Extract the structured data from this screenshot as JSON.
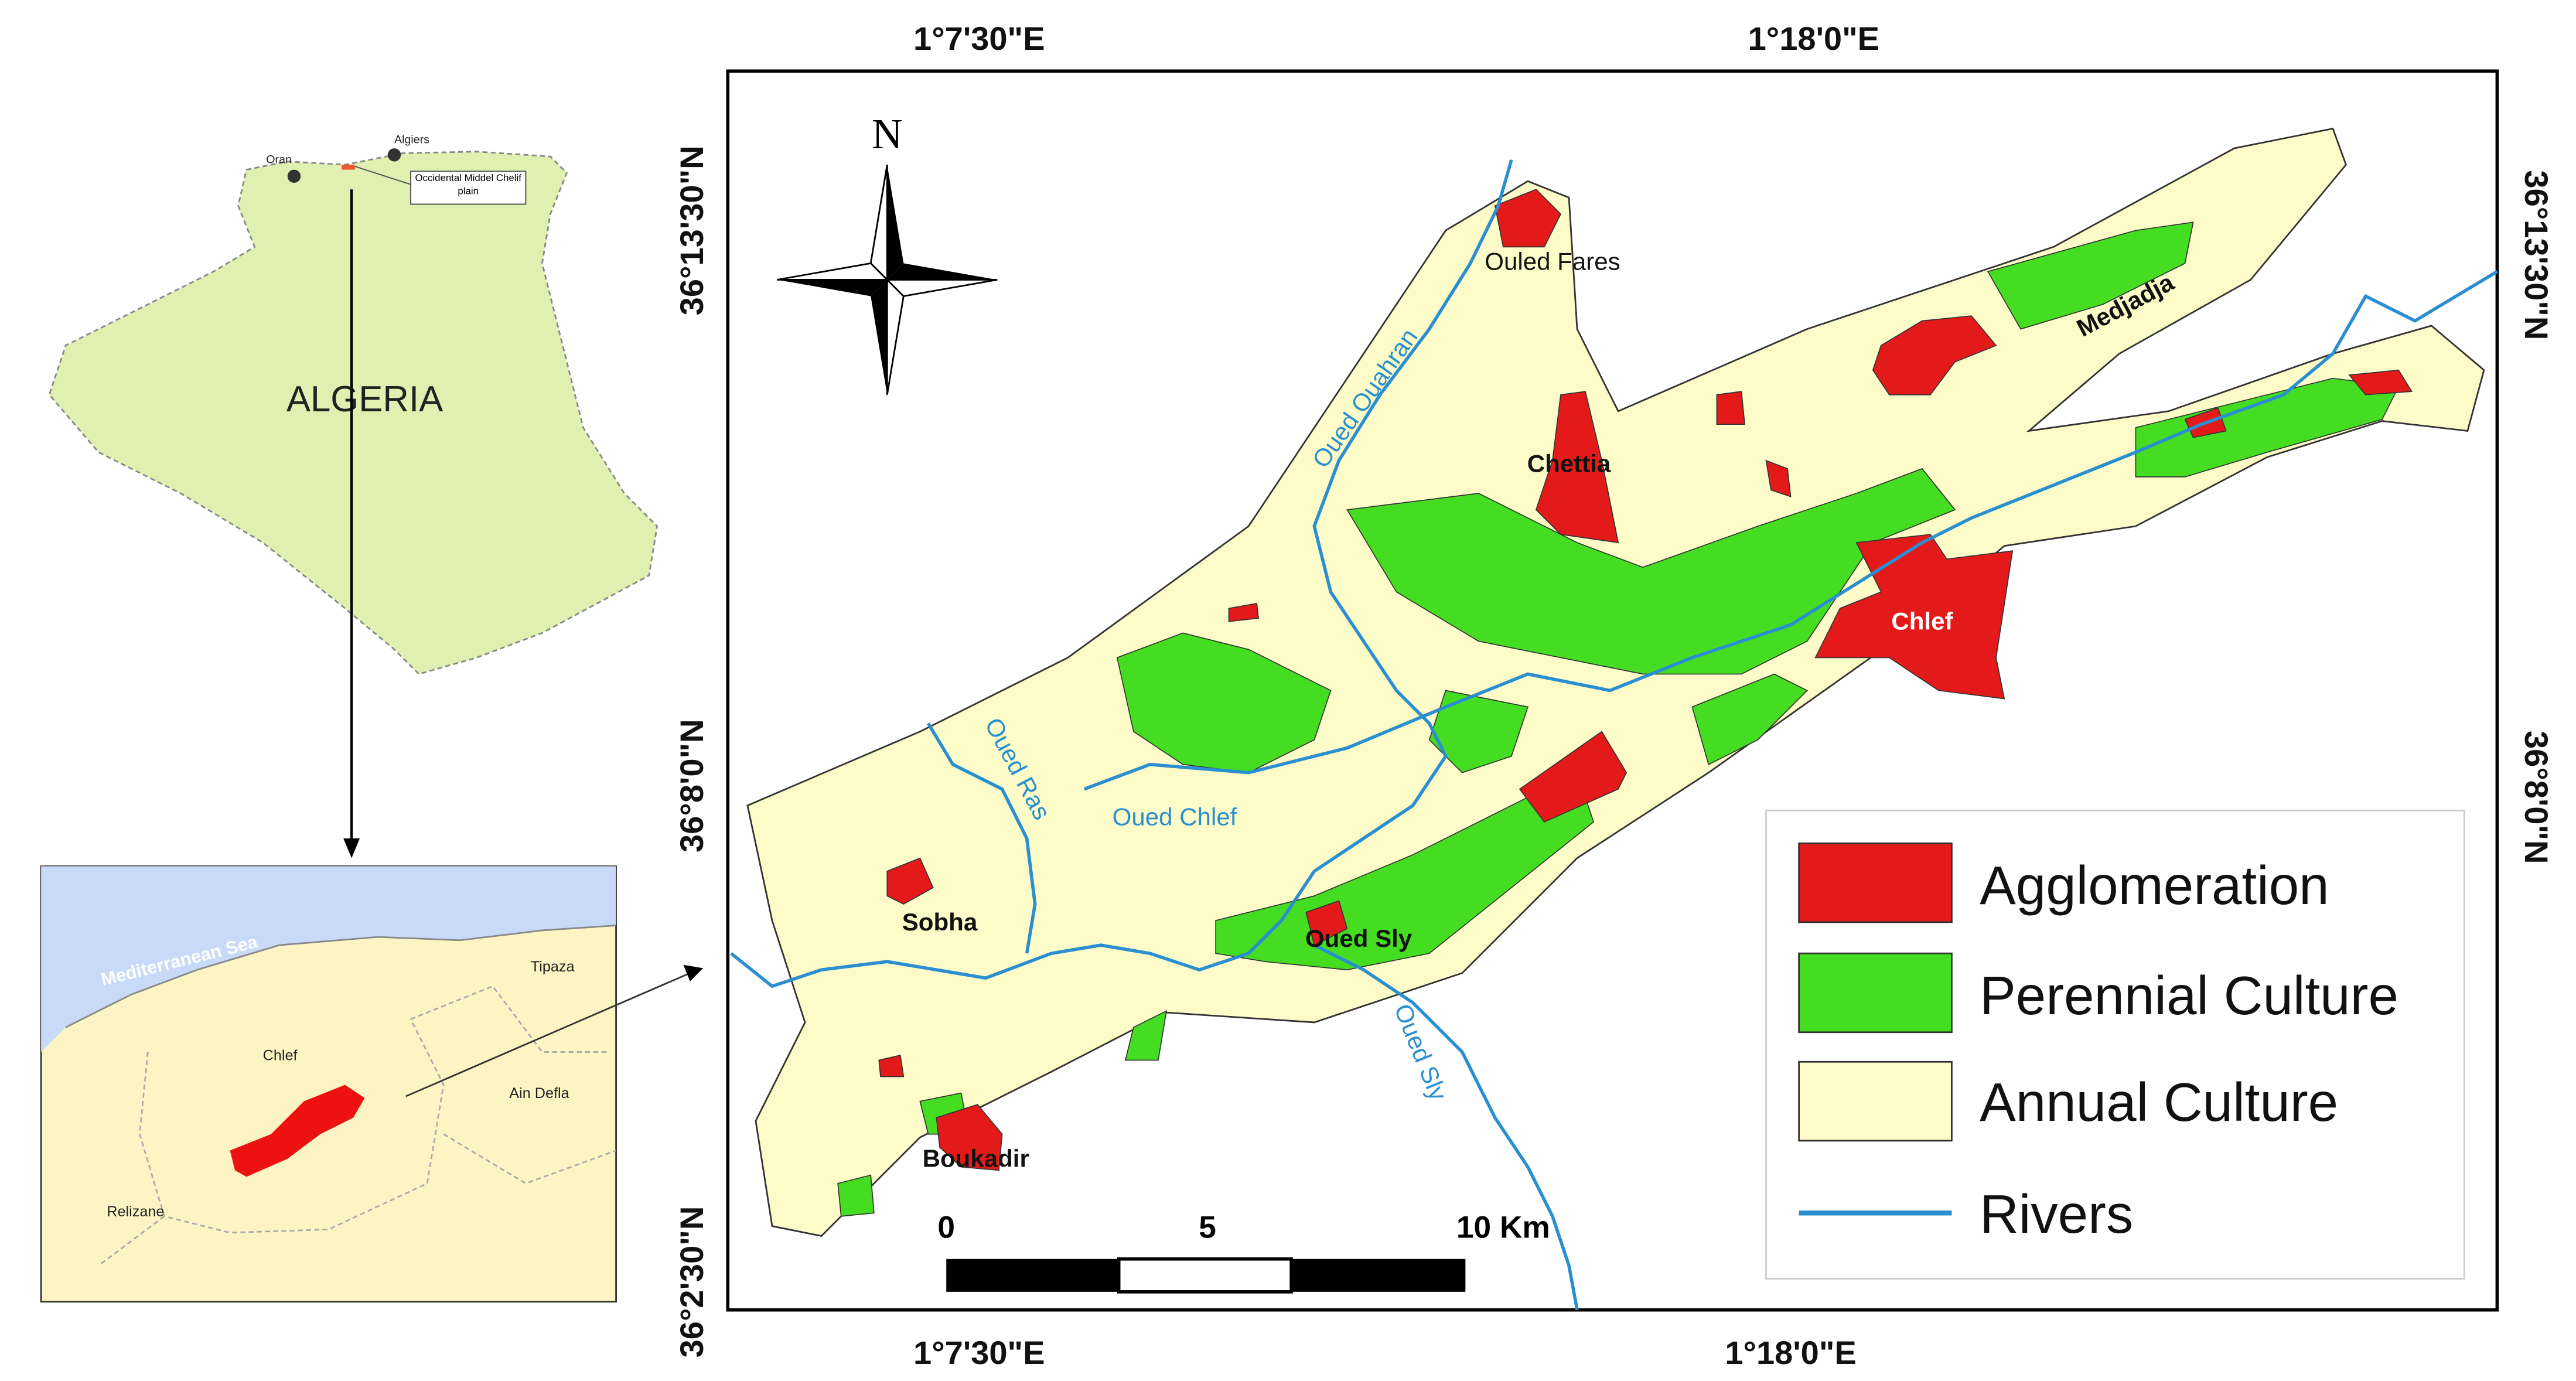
{
  "map": {
    "coordinates": {
      "top": [
        "1°7'30\"E",
        "1°18'0\"E"
      ],
      "bottom": [
        "1°7'30\"E",
        "1°18'0\"E"
      ],
      "left": [
        "36°13'30\"N",
        "36°8'0\"N",
        "36°2'30\"N"
      ],
      "right": [
        "36°13'30\"N",
        "36°8'0\"N"
      ]
    },
    "north": "N",
    "places": [
      "Ouled Fares",
      "Chettia",
      "Medjadja",
      "Chlef",
      "Sobha",
      "Oued Sly",
      "Boukadir"
    ],
    "rivers": [
      "Oued Ouahran",
      "Oued Ras",
      "Oued Chlef",
      "Oued Sly"
    ],
    "scale_bar": [
      "0",
      "5",
      "10 Km"
    ],
    "legend": [
      "Agglomeration",
      "Perennial Culture",
      "Annual Culture",
      "Rivers"
    ],
    "inset_country": {
      "cities": [
        "Oran",
        "Algiers"
      ],
      "study_area": "Occidental Middel Chelif plain",
      "country": "ALGERIA"
    },
    "inset_region": {
      "sea": "Mediterranean Sea",
      "provinces": [
        "Tipaza",
        "Chlef",
        "Ain Defla",
        "Relizane"
      ]
    }
  }
}
